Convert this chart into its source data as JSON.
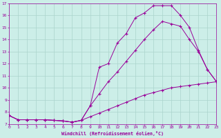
{
  "xlabel": "Windchill (Refroidissement éolien,°C)",
  "xlim": [
    0,
    23
  ],
  "ylim": [
    7,
    17
  ],
  "xticks": [
    0,
    1,
    2,
    3,
    4,
    5,
    6,
    7,
    8,
    9,
    10,
    11,
    12,
    13,
    14,
    15,
    16,
    17,
    18,
    19,
    20,
    21,
    22,
    23
  ],
  "yticks": [
    7,
    8,
    9,
    10,
    11,
    12,
    13,
    14,
    15,
    16,
    17
  ],
  "background_color": "#cceee8",
  "grid_color": "#aad4cc",
  "line_color": "#990099",
  "line1_x": [
    0,
    1,
    2,
    3,
    4,
    5,
    6,
    7,
    8,
    9,
    10,
    11,
    12,
    13,
    14,
    15,
    16,
    17,
    18,
    19,
    20,
    21,
    22,
    23
  ],
  "line1_y": [
    7.7,
    7.35,
    7.35,
    7.35,
    7.35,
    7.3,
    7.25,
    7.15,
    7.3,
    7.6,
    7.9,
    8.2,
    8.5,
    8.8,
    9.1,
    9.4,
    9.6,
    9.8,
    10.0,
    10.1,
    10.2,
    10.3,
    10.4,
    10.5
  ],
  "line2_x": [
    0,
    1,
    2,
    3,
    4,
    5,
    6,
    7,
    8,
    9,
    10,
    11,
    12,
    13,
    14,
    15,
    16,
    17,
    18,
    19,
    20,
    21,
    22,
    23
  ],
  "line2_y": [
    7.7,
    7.35,
    7.35,
    7.35,
    7.35,
    7.3,
    7.25,
    7.15,
    7.3,
    8.5,
    9.5,
    10.5,
    11.3,
    12.2,
    13.1,
    14.0,
    14.8,
    15.5,
    15.3,
    15.1,
    14.0,
    13.0,
    11.5,
    10.5
  ],
  "line3_x": [
    0,
    1,
    2,
    3,
    4,
    5,
    6,
    7,
    8,
    9,
    10,
    11,
    12,
    13,
    14,
    15,
    16,
    17,
    18,
    19,
    20,
    21,
    22,
    23
  ],
  "line3_y": [
    7.7,
    7.35,
    7.35,
    7.35,
    7.35,
    7.3,
    7.25,
    7.15,
    7.3,
    8.5,
    11.7,
    12.0,
    13.7,
    14.5,
    15.8,
    16.2,
    16.8,
    16.8,
    16.8,
    16.0,
    15.0,
    13.1,
    11.5,
    10.5
  ]
}
